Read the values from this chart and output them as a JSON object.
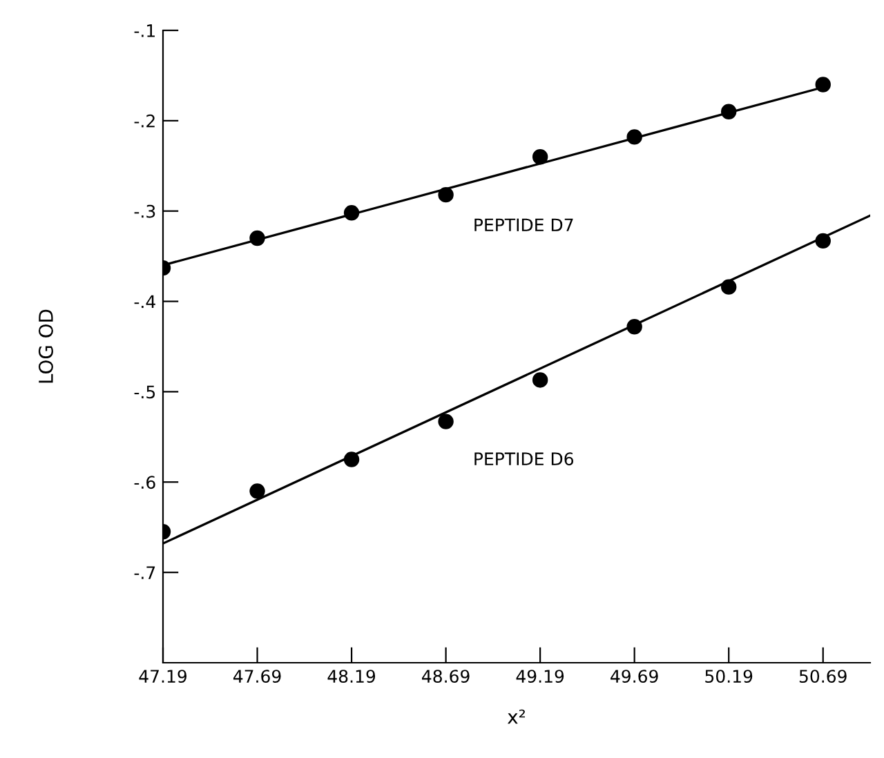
{
  "chart_data": {
    "type": "scatter",
    "xlabel": "x²",
    "ylabel": "LOG OD",
    "x": [
      47.19,
      47.69,
      48.19,
      48.69,
      49.19,
      49.69,
      50.19,
      50.69
    ],
    "series": [
      {
        "color": "#000000",
        "marker": "circle",
        "values": [
          -0.363,
          -0.33,
          -0.302,
          -0.282,
          -0.24,
          -0.218,
          -0.19,
          -0.16
        ]
      },
      {
        "color": "#000000",
        "marker": "circle",
        "values": [
          -0.655,
          -0.61,
          -0.575,
          -0.533,
          -0.487,
          -0.428,
          -0.384,
          -0.333
        ]
      },
      {
        "type": "line",
        "marker": "none",
        "color": "#000000",
        "x": [
          47.19,
          50.69
        ],
        "values": [
          -0.36,
          -0.163
        ]
      },
      {
        "type": "line",
        "marker": "none",
        "color": "#000000",
        "x": [
          47.19,
          50.94
        ],
        "values": [
          -0.668,
          -0.305
        ]
      }
    ],
    "annotations": [
      "PEPTIDE D7",
      "PEPTIDE D6"
    ],
    "xlim": [
      47.19,
      50.94
    ],
    "ylim": [
      -0.8,
      -0.1
    ],
    "xticks": [
      47.19,
      47.69,
      48.19,
      48.69,
      49.19,
      49.69,
      50.19,
      50.69
    ],
    "yticks": [
      {
        "value": -0.1,
        "label": "-.1"
      },
      {
        "value": -0.2,
        "label": "-.2"
      },
      {
        "value": -0.3,
        "label": "-.3"
      },
      {
        "value": -0.4,
        "label": "-.4"
      },
      {
        "value": -0.5,
        "label": "-.5"
      },
      {
        "value": -0.6,
        "label": "-.6"
      },
      {
        "value": -0.7,
        "label": "-.7"
      }
    ],
    "grid": false,
    "legend": false
  }
}
